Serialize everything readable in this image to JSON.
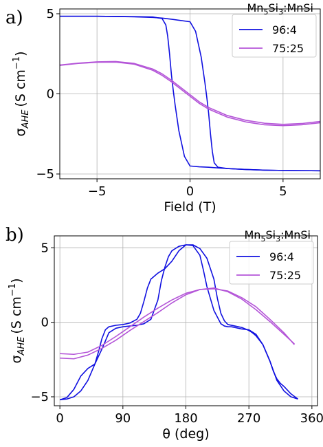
{
  "colors": {
    "series_96_4": "#1010e0",
    "series_75_25": "#b455d8",
    "grid": "#b0b0b0"
  },
  "chart_data": [
    {
      "panel_label": "a)",
      "type": "line",
      "xlabel": "Field (T)",
      "ylabel_main": "σ",
      "ylabel_sub": "AHE",
      "ylabel_unit": "(S cm",
      "ylabel_exp": "−1",
      "ylabel_close": ")",
      "xlim": [
        -7,
        7
      ],
      "ylim": [
        -5.3,
        5.3
      ],
      "xticks": [
        -5,
        0,
        5
      ],
      "xtick_labels": [
        "−5",
        "0",
        "5"
      ],
      "yticks": [
        -5,
        0,
        5
      ],
      "ytick_labels": [
        "−5",
        "0",
        "5"
      ],
      "grid": true,
      "legend": {
        "placement": "top-right",
        "title_main": "Mn",
        "title_sub1": "5",
        "title_mid": "Si",
        "title_sub2": "3",
        "title_end": ":MnSi",
        "entries": [
          "96:4",
          "75:25"
        ]
      },
      "series": [
        {
          "name": "96:4",
          "color_key": "series_96_4",
          "branch": "sweep-down",
          "x": [
            7,
            6,
            5,
            4,
            3,
            2,
            1.5,
            1,
            0.5,
            0,
            -0.3,
            -0.6,
            -0.8,
            -0.9,
            -1.0,
            -1.1,
            -1.2,
            -1.3,
            -1.5,
            -2,
            -3,
            -4,
            -5,
            -6,
            -7
          ],
          "y": [
            -4.8,
            -4.79,
            -4.78,
            -4.76,
            -4.72,
            -4.66,
            -4.62,
            -4.58,
            -4.55,
            -4.5,
            -3.9,
            -2.3,
            -0.7,
            0.2,
            1.2,
            2.5,
            3.6,
            4.3,
            4.7,
            4.8,
            4.82,
            4.83,
            4.84,
            4.84,
            4.84
          ]
        },
        {
          "name": "96:4",
          "color_key": "series_96_4",
          "branch": "sweep-up",
          "x": [
            -7,
            -6,
            -5,
            -4,
            -3,
            -2,
            -1.5,
            -1,
            -0.5,
            0,
            0.3,
            0.6,
            0.8,
            0.9,
            1.0,
            1.1,
            1.2,
            1.3,
            1.5,
            2,
            3,
            4,
            5,
            6,
            7
          ],
          "y": [
            4.84,
            4.84,
            4.84,
            4.83,
            4.81,
            4.77,
            4.73,
            4.66,
            4.58,
            4.5,
            3.9,
            2.3,
            0.7,
            -0.2,
            -1.2,
            -2.5,
            -3.6,
            -4.3,
            -4.58,
            -4.66,
            -4.72,
            -4.76,
            -4.78,
            -4.79,
            -4.8
          ]
        },
        {
          "name": "75:25",
          "color_key": "series_75_25",
          "branch": "sweep-down",
          "x": [
            -7,
            -6,
            -5,
            -4,
            -3,
            -2,
            -1.5,
            -1,
            -0.5,
            0,
            0.5,
            1,
            1.5,
            2,
            3,
            4,
            5,
            6,
            7
          ],
          "y": [
            1.8,
            1.92,
            2.0,
            2.02,
            1.9,
            1.55,
            1.25,
            0.85,
            0.4,
            -0.05,
            -0.5,
            -0.85,
            -1.1,
            -1.35,
            -1.65,
            -1.83,
            -1.9,
            -1.85,
            -1.72
          ]
        },
        {
          "name": "75:25",
          "color_key": "series_75_25",
          "branch": "sweep-up",
          "x": [
            -7,
            -6,
            -5,
            -4,
            -3,
            -2,
            -1.5,
            -1,
            -0.5,
            0,
            0.5,
            1,
            1.5,
            2,
            3,
            4,
            5,
            6,
            7
          ],
          "y": [
            1.78,
            1.9,
            1.97,
            1.98,
            1.85,
            1.47,
            1.15,
            0.75,
            0.3,
            -0.15,
            -0.6,
            -0.95,
            -1.2,
            -1.45,
            -1.75,
            -1.93,
            -1.98,
            -1.93,
            -1.8
          ]
        }
      ]
    },
    {
      "panel_label": "b)",
      "type": "line",
      "xlabel": "θ (deg)",
      "ylabel_main": "σ",
      "ylabel_sub": "AHE",
      "ylabel_unit": "(S cm",
      "ylabel_exp": "−1",
      "ylabel_close": ")",
      "xlim": [
        -8,
        368
      ],
      "ylim": [
        -5.6,
        5.8
      ],
      "xticks": [
        0,
        90,
        180,
        270,
        360
      ],
      "xtick_labels": [
        "0",
        "90",
        "180",
        "270",
        "360"
      ],
      "yticks": [
        -5,
        0,
        5
      ],
      "ytick_labels": [
        "−5",
        "0",
        "5"
      ],
      "grid": true,
      "legend": {
        "placement": "top-right",
        "title_main": "Mn",
        "title_sub1": "5",
        "title_mid": "Si",
        "title_sub2": "3",
        "title_end": ":MnSi",
        "entries": [
          "96:4",
          "75:25"
        ]
      },
      "series": [
        {
          "name": "96:4",
          "color_key": "series_96_4",
          "branch": "forward",
          "x": [
            0,
            10,
            20,
            30,
            40,
            50,
            55,
            60,
            65,
            70,
            80,
            90,
            100,
            110,
            115,
            120,
            125,
            130,
            140,
            150,
            160,
            170,
            180,
            190,
            200,
            205,
            210,
            220,
            230,
            235,
            240,
            245,
            250,
            260,
            270,
            280,
            290,
            300,
            305,
            310,
            315,
            320,
            330,
            340
          ],
          "y": [
            -5.2,
            -5.15,
            -5.0,
            -4.6,
            -3.9,
            -2.8,
            -2.0,
            -1.1,
            -0.5,
            -0.3,
            -0.2,
            -0.15,
            -0.05,
            0.2,
            0.6,
            1.4,
            2.3,
            2.9,
            3.3,
            3.6,
            4.1,
            4.8,
            5.2,
            5.15,
            4.5,
            3.5,
            2.4,
            0.8,
            -0.1,
            -0.25,
            -0.3,
            -0.3,
            -0.35,
            -0.45,
            -0.5,
            -0.8,
            -1.5,
            -2.6,
            -3.3,
            -3.8,
            -4.1,
            -4.3,
            -4.8,
            -5.15
          ]
        },
        {
          "name": "96:4",
          "color_key": "series_96_4",
          "branch": "backward",
          "x": [
            340,
            330,
            320,
            310,
            300,
            290,
            280,
            275,
            270,
            265,
            260,
            250,
            240,
            235,
            230,
            225,
            220,
            210,
            200,
            190,
            180,
            170,
            160,
            155,
            150,
            145,
            140,
            130,
            120,
            110,
            100,
            90,
            80,
            70,
            60,
            50,
            40,
            30,
            20,
            10,
            0
          ],
          "y": [
            -5.15,
            -5.0,
            -4.6,
            -3.9,
            -2.6,
            -1.5,
            -0.9,
            -0.7,
            -0.55,
            -0.45,
            -0.35,
            -0.25,
            -0.15,
            0.1,
            0.6,
            1.6,
            2.9,
            4.3,
            4.95,
            5.2,
            5.2,
            5.1,
            4.8,
            4.4,
            3.7,
            2.8,
            1.5,
            0.2,
            -0.1,
            -0.2,
            -0.25,
            -0.3,
            -0.4,
            -0.7,
            -1.8,
            -2.8,
            -3.1,
            -3.6,
            -4.5,
            -5.05,
            -5.2
          ]
        },
        {
          "name": "75:25",
          "color_key": "series_75_25",
          "branch": "forward",
          "x": [
            0,
            20,
            40,
            60,
            80,
            100,
            120,
            140,
            160,
            180,
            200,
            220,
            240,
            260,
            280,
            300,
            320,
            335
          ],
          "y": [
            -2.1,
            -2.15,
            -2.0,
            -1.55,
            -0.95,
            -0.3,
            0.35,
            0.95,
            1.5,
            1.95,
            2.2,
            2.3,
            2.05,
            1.55,
            0.85,
            0.05,
            -0.8,
            -1.45
          ]
        },
        {
          "name": "75:25",
          "color_key": "series_75_25",
          "branch": "backward",
          "x": [
            335,
            320,
            300,
            280,
            260,
            240,
            220,
            200,
            180,
            160,
            140,
            120,
            100,
            80,
            60,
            40,
            20,
            0
          ],
          "y": [
            -1.5,
            -0.7,
            0.2,
            1.05,
            1.65,
            2.1,
            2.25,
            2.2,
            1.85,
            1.3,
            0.65,
            0.05,
            -0.55,
            -1.2,
            -1.75,
            -2.2,
            -2.45,
            -2.4
          ]
        }
      ]
    }
  ]
}
